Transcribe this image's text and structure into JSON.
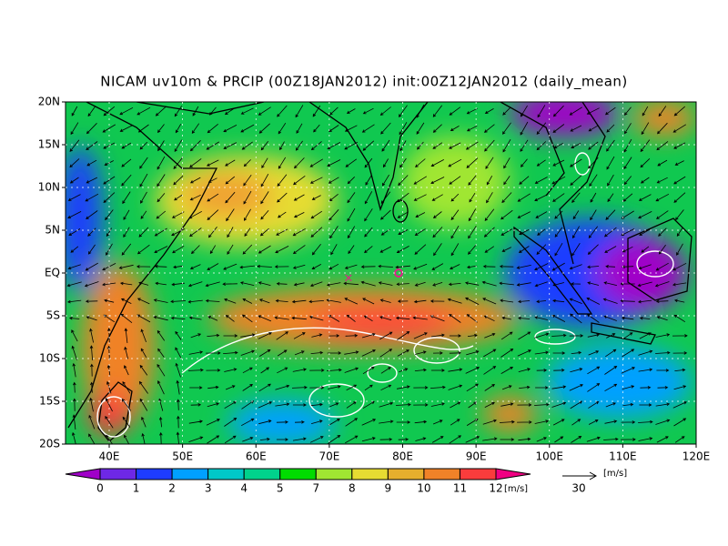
{
  "title": "NICAM uv10m & PRCIP (00Z18JAN2012) init:00Z12JAN2012 (daily_mean)",
  "map": {
    "lat_labels": [
      "20N",
      "15N",
      "10N",
      "5N",
      "EQ",
      "5S",
      "10S",
      "15S",
      "20S"
    ],
    "lon_labels": [
      "40E",
      "50E",
      "60E",
      "70E",
      "80E",
      "90E",
      "100E",
      "110E",
      "120E"
    ]
  },
  "colorbar": {
    "labels": [
      "0",
      "1",
      "2",
      "3",
      "4",
      "5",
      "7",
      "8",
      "9",
      "10",
      "11",
      "12"
    ],
    "colors": [
      "#a000c8",
      "#6e28e6",
      "#1e3cff",
      "#00a0ff",
      "#00c8c8",
      "#00d28c",
      "#00dc00",
      "#a0e632",
      "#e6dc32",
      "#e6af2d",
      "#f08228",
      "#fa3c3c",
      "#f00082"
    ],
    "unit": "[m/s]"
  },
  "vector_key": {
    "label": "30",
    "unit": "[m/s]"
  }
}
